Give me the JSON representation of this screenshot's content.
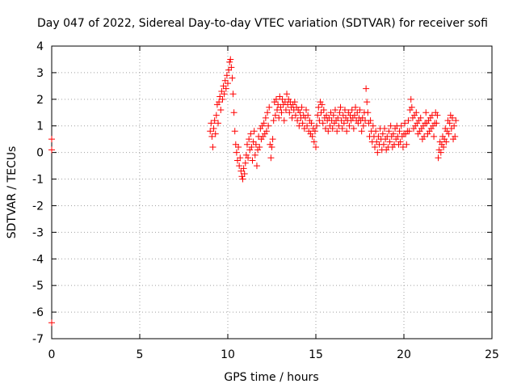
{
  "chart_data": {
    "type": "scatter",
    "title": "Day 047 of 2022, Sidereal Day-to-day VTEC variation (SDTVAR) for receiver sofi",
    "xlabel": "GPS time / hours",
    "ylabel": "SDTVAR / TECUs",
    "xlim": [
      0,
      25
    ],
    "ylim": [
      -7,
      4
    ],
    "xticks": [
      0,
      5,
      10,
      15,
      20,
      25
    ],
    "yticks": [
      -7,
      -6,
      -5,
      -4,
      -3,
      -2,
      -1,
      0,
      1,
      2,
      3,
      4
    ],
    "xtick_labels": [
      "0",
      "5",
      "10",
      "15",
      "20",
      "25"
    ],
    "ytick_labels": [
      "-7",
      "-6",
      "-5",
      "-4",
      "-3",
      "-2",
      "-1",
      "0",
      "1",
      "2",
      "3",
      "4"
    ],
    "grid": true,
    "legend": "none",
    "marker": "plus",
    "series": [
      {
        "name": "SDTVAR",
        "color": "#ff0000",
        "points": [
          [
            0.0,
            0.5
          ],
          [
            0.0,
            0.1
          ],
          [
            0.0,
            -6.4
          ],
          [
            9.0,
            0.8
          ],
          [
            9.05,
            1.1
          ],
          [
            9.1,
            0.6
          ],
          [
            9.15,
            0.2
          ],
          [
            9.2,
            0.9
          ],
          [
            9.25,
            1.2
          ],
          [
            9.3,
            0.7
          ],
          [
            9.35,
            1.4
          ],
          [
            9.4,
            1.8
          ],
          [
            9.45,
            1.1
          ],
          [
            9.5,
            1.9
          ],
          [
            9.55,
            2.1
          ],
          [
            9.6,
            1.6
          ],
          [
            9.65,
            2.3
          ],
          [
            9.7,
            2.0
          ],
          [
            9.75,
            2.5
          ],
          [
            9.8,
            2.2
          ],
          [
            9.85,
            2.7
          ],
          [
            9.9,
            2.4
          ],
          [
            9.95,
            2.9
          ],
          [
            10.0,
            2.6
          ],
          [
            10.05,
            3.1
          ],
          [
            10.1,
            3.4
          ],
          [
            10.15,
            3.5
          ],
          [
            10.2,
            3.2
          ],
          [
            10.25,
            2.8
          ],
          [
            10.3,
            2.2
          ],
          [
            10.35,
            1.5
          ],
          [
            10.4,
            0.8
          ],
          [
            10.45,
            0.3
          ],
          [
            10.5,
            0.0
          ],
          [
            10.55,
            -0.3
          ],
          [
            10.6,
            0.2
          ],
          [
            10.65,
            -0.5
          ],
          [
            10.7,
            -0.2
          ],
          [
            10.75,
            -0.7
          ],
          [
            10.8,
            -0.9
          ],
          [
            10.85,
            -1.0
          ],
          [
            10.9,
            -0.6
          ],
          [
            10.95,
            -0.8
          ],
          [
            11.0,
            -0.4
          ],
          [
            11.05,
            -0.1
          ],
          [
            11.1,
            0.3
          ],
          [
            11.15,
            -0.2
          ],
          [
            11.2,
            0.5
          ],
          [
            11.25,
            0.1
          ],
          [
            11.3,
            0.7
          ],
          [
            11.35,
            0.2
          ],
          [
            11.4,
            -0.3
          ],
          [
            11.45,
            0.4
          ],
          [
            11.5,
            0.8
          ],
          [
            11.55,
            -0.1
          ],
          [
            11.6,
            0.3
          ],
          [
            11.65,
            -0.5
          ],
          [
            11.7,
            0.1
          ],
          [
            11.75,
            0.6
          ],
          [
            11.8,
            0.2
          ],
          [
            11.85,
            0.9
          ],
          [
            11.9,
            0.5
          ],
          [
            11.95,
            1.0
          ],
          [
            12.0,
            0.6
          ],
          [
            12.05,
            1.1
          ],
          [
            12.1,
            0.7
          ],
          [
            12.15,
            1.3
          ],
          [
            12.2,
            0.8
          ],
          [
            12.25,
            1.5
          ],
          [
            12.3,
            1.0
          ],
          [
            12.35,
            1.7
          ],
          [
            12.4,
            0.3
          ],
          [
            12.45,
            -0.2
          ],
          [
            12.5,
            0.2
          ],
          [
            12.55,
            0.5
          ],
          [
            12.6,
            1.2
          ],
          [
            12.65,
            1.9
          ],
          [
            12.7,
            1.4
          ],
          [
            12.75,
            2.0
          ],
          [
            12.8,
            1.6
          ],
          [
            12.85,
            1.8
          ],
          [
            12.9,
            1.3
          ],
          [
            12.95,
            2.1
          ],
          [
            13.0,
            1.7
          ],
          [
            13.05,
            1.5
          ],
          [
            13.1,
            2.0
          ],
          [
            13.15,
            1.8
          ],
          [
            13.2,
            1.2
          ],
          [
            13.25,
            1.9
          ],
          [
            13.3,
            1.6
          ],
          [
            13.35,
            2.2
          ],
          [
            13.4,
            1.8
          ],
          [
            13.45,
            2.0
          ],
          [
            13.5,
            1.5
          ],
          [
            13.55,
            1.9
          ],
          [
            13.6,
            1.7
          ],
          [
            13.65,
            1.3
          ],
          [
            13.7,
            1.8
          ],
          [
            13.75,
            1.6
          ],
          [
            13.8,
            1.9
          ],
          [
            13.85,
            1.4
          ],
          [
            13.9,
            1.7
          ],
          [
            13.95,
            1.2
          ],
          [
            14.0,
            1.6
          ],
          [
            14.05,
            1.0
          ],
          [
            14.1,
            1.5
          ],
          [
            14.15,
            1.3
          ],
          [
            14.2,
            1.7
          ],
          [
            14.25,
            1.1
          ],
          [
            14.3,
            1.4
          ],
          [
            14.35,
            0.9
          ],
          [
            14.4,
            1.3
          ],
          [
            14.45,
            1.6
          ],
          [
            14.5,
            1.0
          ],
          [
            14.55,
            1.4
          ],
          [
            14.6,
            0.8
          ],
          [
            14.65,
            1.2
          ],
          [
            14.7,
            0.7
          ],
          [
            14.75,
            1.1
          ],
          [
            14.8,
            0.6
          ],
          [
            14.85,
            0.9
          ],
          [
            14.9,
            0.4
          ],
          [
            14.95,
            0.8
          ],
          [
            15.0,
            0.2
          ],
          [
            15.05,
            1.0
          ],
          [
            15.1,
            1.4
          ],
          [
            15.15,
            1.7
          ],
          [
            15.2,
            1.2
          ],
          [
            15.25,
            1.9
          ],
          [
            15.3,
            1.5
          ],
          [
            15.35,
            1.8
          ],
          [
            15.4,
            1.1
          ],
          [
            15.45,
            1.6
          ],
          [
            15.5,
            1.3
          ],
          [
            15.55,
            0.9
          ],
          [
            15.6,
            1.4
          ],
          [
            15.65,
            1.2
          ],
          [
            15.7,
            0.8
          ],
          [
            15.75,
            1.3
          ],
          [
            15.8,
            1.0
          ],
          [
            15.85,
            1.5
          ],
          [
            15.9,
            1.2
          ],
          [
            15.95,
            0.9
          ],
          [
            16.0,
            1.4
          ],
          [
            16.05,
            1.1
          ],
          [
            16.1,
            1.6
          ],
          [
            16.15,
            1.2
          ],
          [
            16.2,
            0.8
          ],
          [
            16.25,
            1.3
          ],
          [
            16.3,
            1.0
          ],
          [
            16.35,
            1.5
          ],
          [
            16.4,
            1.7
          ],
          [
            16.45,
            1.2
          ],
          [
            16.5,
            0.9
          ],
          [
            16.55,
            1.4
          ],
          [
            16.6,
            1.1
          ],
          [
            16.65,
            1.6
          ],
          [
            16.7,
            1.3
          ],
          [
            16.75,
            0.8
          ],
          [
            16.8,
            1.2
          ],
          [
            16.85,
            1.5
          ],
          [
            16.9,
            1.0
          ],
          [
            16.95,
            1.4
          ],
          [
            17.0,
            1.2
          ],
          [
            17.05,
            1.6
          ],
          [
            17.1,
            1.3
          ],
          [
            17.15,
            0.9
          ],
          [
            17.2,
            1.4
          ],
          [
            17.25,
            1.7
          ],
          [
            17.3,
            1.2
          ],
          [
            17.35,
            1.5
          ],
          [
            17.4,
            1.1
          ],
          [
            17.45,
            1.3
          ],
          [
            17.5,
            1.6
          ],
          [
            17.55,
            1.2
          ],
          [
            17.6,
            0.8
          ],
          [
            17.65,
            1.3
          ],
          [
            17.7,
            1.0
          ],
          [
            17.75,
            1.5
          ],
          [
            17.8,
            1.2
          ],
          [
            17.85,
            2.4
          ],
          [
            17.9,
            1.9
          ],
          [
            17.95,
            1.5
          ],
          [
            18.0,
            1.1
          ],
          [
            18.05,
            0.6
          ],
          [
            18.1,
            1.2
          ],
          [
            18.15,
            0.8
          ],
          [
            18.2,
            0.4
          ],
          [
            18.25,
            1.0
          ],
          [
            18.3,
            0.6
          ],
          [
            18.35,
            0.2
          ],
          [
            18.4,
            0.8
          ],
          [
            18.45,
            0.4
          ],
          [
            18.5,
            0.0
          ],
          [
            18.55,
            0.6
          ],
          [
            18.6,
            0.3
          ],
          [
            18.65,
            0.9
          ],
          [
            18.7,
            0.5
          ],
          [
            18.75,
            0.1
          ],
          [
            18.8,
            0.7
          ],
          [
            18.85,
            0.3
          ],
          [
            18.9,
            0.9
          ],
          [
            18.95,
            0.5
          ],
          [
            19.0,
            0.1
          ],
          [
            19.05,
            0.6
          ],
          [
            19.1,
            0.2
          ],
          [
            19.15,
            0.8
          ],
          [
            19.2,
            0.4
          ],
          [
            19.25,
            1.0
          ],
          [
            19.3,
            0.6
          ],
          [
            19.35,
            0.2
          ],
          [
            19.4,
            0.7
          ],
          [
            19.45,
            0.3
          ],
          [
            19.5,
            0.9
          ],
          [
            19.55,
            0.5
          ],
          [
            19.6,
            1.0
          ],
          [
            19.65,
            0.6
          ],
          [
            19.7,
            0.3
          ],
          [
            19.75,
            0.8
          ],
          [
            19.8,
            0.4
          ],
          [
            19.85,
            1.0
          ],
          [
            19.9,
            0.6
          ],
          [
            19.95,
            0.2
          ],
          [
            20.0,
            0.7
          ],
          [
            20.05,
            1.1
          ],
          [
            20.1,
            0.7
          ],
          [
            20.15,
            0.3
          ],
          [
            20.2,
            0.8
          ],
          [
            20.25,
            1.2
          ],
          [
            20.3,
            0.8
          ],
          [
            20.35,
            1.6
          ],
          [
            20.4,
            2.0
          ],
          [
            20.45,
            1.7
          ],
          [
            20.5,
            1.3
          ],
          [
            20.55,
            0.9
          ],
          [
            20.6,
            1.4
          ],
          [
            20.65,
            1.0
          ],
          [
            20.7,
            1.5
          ],
          [
            20.75,
            1.1
          ],
          [
            20.8,
            0.7
          ],
          [
            20.85,
            1.2
          ],
          [
            20.9,
            0.8
          ],
          [
            20.95,
            1.3
          ],
          [
            21.0,
            0.9
          ],
          [
            21.05,
            0.5
          ],
          [
            21.1,
            1.0
          ],
          [
            21.15,
            0.6
          ],
          [
            21.2,
            1.1
          ],
          [
            21.25,
            1.5
          ],
          [
            21.3,
            1.1
          ],
          [
            21.35,
            0.7
          ],
          [
            21.4,
            1.2
          ],
          [
            21.45,
            0.8
          ],
          [
            21.5,
            1.3
          ],
          [
            21.55,
            0.9
          ],
          [
            21.6,
            1.4
          ],
          [
            21.65,
            1.0
          ],
          [
            21.7,
            0.6
          ],
          [
            21.75,
            1.1
          ],
          [
            21.8,
            1.5
          ],
          [
            21.85,
            1.1
          ],
          [
            21.9,
            1.4
          ],
          [
            21.95,
            -0.2
          ],
          [
            22.0,
            0.1
          ],
          [
            22.05,
            0.4
          ],
          [
            22.1,
            0.0
          ],
          [
            22.15,
            0.3
          ],
          [
            22.2,
            0.6
          ],
          [
            22.25,
            0.2
          ],
          [
            22.3,
            0.5
          ],
          [
            22.35,
            0.9
          ],
          [
            22.4,
            0.4
          ],
          [
            22.45,
            0.8
          ],
          [
            22.5,
            1.2
          ],
          [
            22.55,
            0.7
          ],
          [
            22.6,
            1.1
          ],
          [
            22.65,
            1.4
          ],
          [
            22.7,
            0.9
          ],
          [
            22.75,
            1.3
          ],
          [
            22.8,
            0.5
          ],
          [
            22.85,
            1.0
          ],
          [
            22.9,
            0.6
          ],
          [
            22.95,
            1.2
          ]
        ]
      }
    ]
  }
}
